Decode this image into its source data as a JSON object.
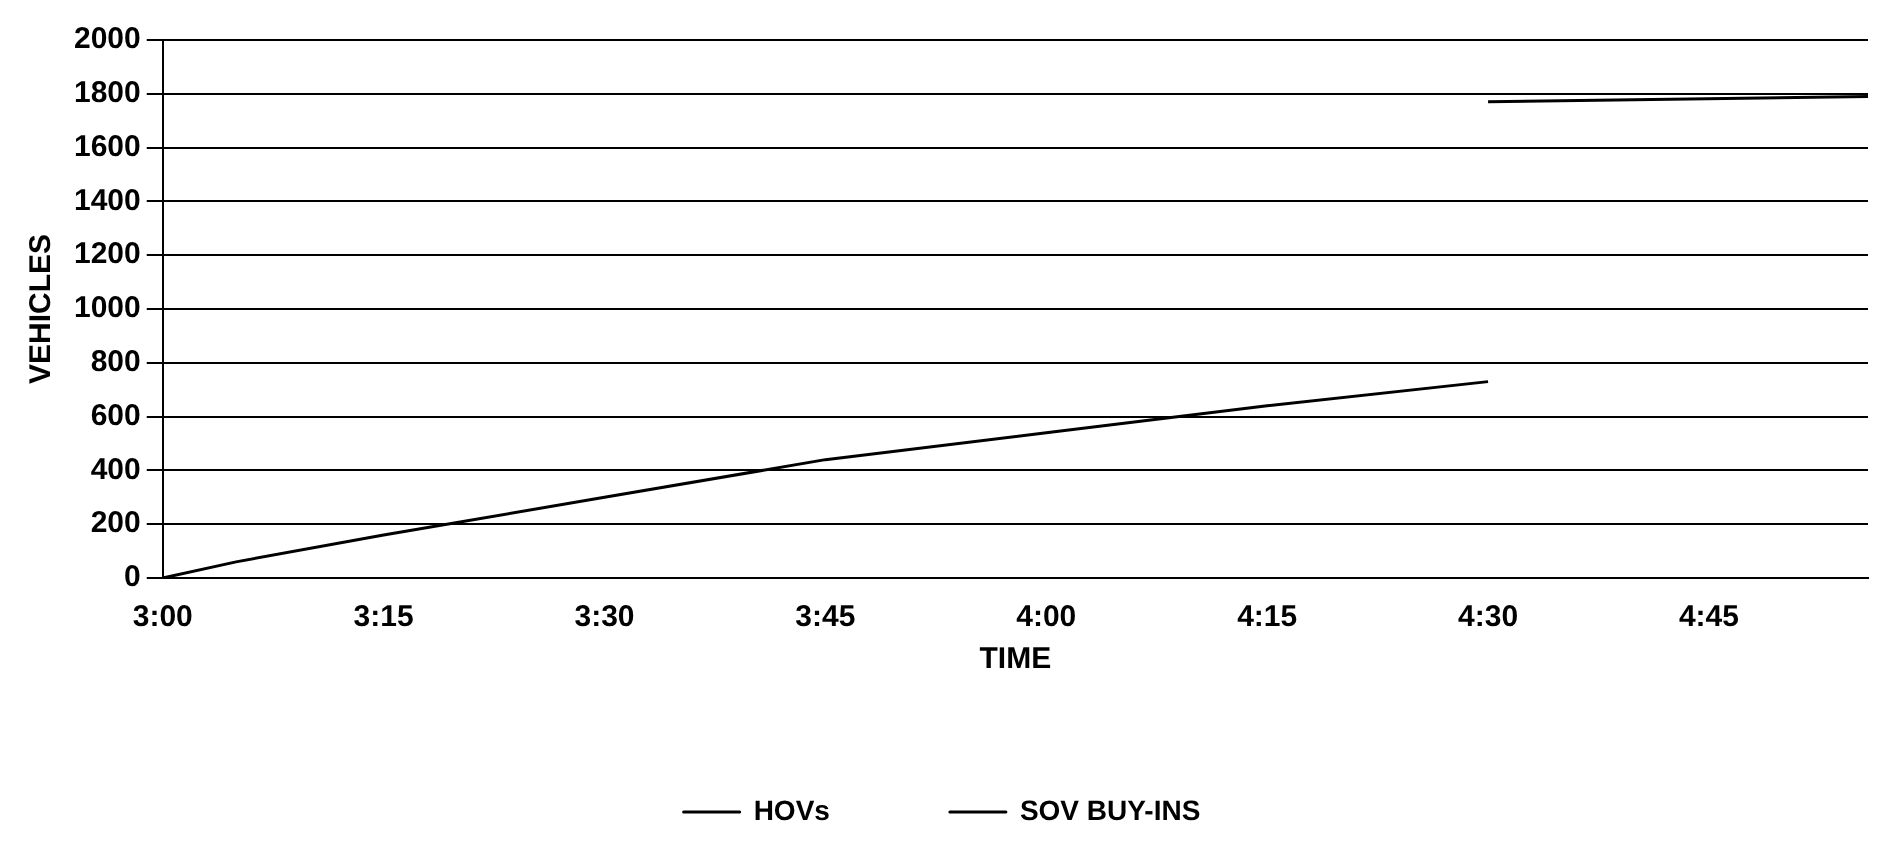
{
  "chart_data": {
    "type": "line",
    "xlabel": "TIME",
    "ylabel": "VEHICLES",
    "xlim": [
      3,
      4.93
    ],
    "ylim": [
      0,
      2000
    ],
    "xticks": [
      {
        "value": 3,
        "label": "3:00"
      },
      {
        "value": 3.25,
        "label": "3:15"
      },
      {
        "value": 3.5,
        "label": "3:30"
      },
      {
        "value": 3.75,
        "label": "3:45"
      },
      {
        "value": 4,
        "label": "4:00"
      },
      {
        "value": 4.25,
        "label": "4:15"
      },
      {
        "value": 4.5,
        "label": "4:30"
      },
      {
        "value": 4.75,
        "label": "4:45"
      }
    ],
    "yticks": [
      0,
      200,
      400,
      600,
      800,
      1000,
      1200,
      1400,
      1600,
      1800,
      2000
    ],
    "grid": "y",
    "legend": "bottom",
    "marker": "none",
    "line_style": "solid",
    "series": [
      {
        "name": "HOVs",
        "color": "#000000",
        "x": [
          3,
          3.083,
          3.25,
          3.5,
          3.75,
          4,
          4.25,
          4.5
        ],
        "values": [
          0,
          60,
          160,
          300,
          440,
          540,
          640,
          730
        ]
      },
      {
        "name": "SOV BUY-INS",
        "color": "#000000",
        "x": [
          4.5,
          4.93
        ],
        "values": [
          1770,
          1790
        ]
      }
    ]
  }
}
